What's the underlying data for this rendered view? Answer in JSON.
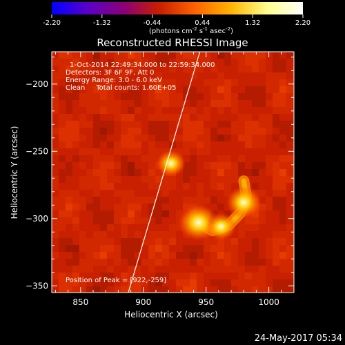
{
  "chart_data": {
    "type": "heatmap",
    "title": "Reconstructed RHESSI Image",
    "xlabel": "Heliocentric X (arcsec)",
    "ylabel": "Heliocentric Y (arcsec)",
    "x_range": [
      827,
      1020
    ],
    "y_range": [
      -355,
      -176
    ],
    "x_ticks": [
      850,
      900,
      950,
      1000
    ],
    "y_ticks": [
      -350,
      -300,
      -250,
      -200
    ],
    "colorbar": {
      "ticks": [
        "-2.20",
        "-1.32",
        "-0.44",
        "0.44",
        "1.32",
        "2.20"
      ],
      "range": [
        -2.2,
        2.2
      ],
      "unit_label": "(photons cm",
      "unit_sup1": "-2",
      "unit_mid": " s",
      "unit_sup2": "-1",
      "unit_tail": " asec",
      "unit_sup3": "-2",
      "unit_close": ")",
      "colors": [
        "#0000ff",
        "#5a00c8",
        "#8a0078",
        "#c81e00",
        "#ff6400",
        "#ffb400",
        "#ffff8c",
        "#ffffff"
      ]
    },
    "annotations": [
      "1-Oct-2014 22:49:34.000 to 22:59:34.000",
      "Detectors: 3F 6F 9F, Att 0",
      "Energy Range: 3.0 - 6.0 keV",
      "Clean     Total counts: 1.60E+05"
    ],
    "peak_label": "Position of Peak = [922,-259]",
    "peak": {
      "x": 922,
      "y": -259
    },
    "sources": [
      {
        "x": 922,
        "y": -259,
        "intensity": 2.2,
        "width": 7
      },
      {
        "x": 944,
        "y": -303,
        "intensity": 1.3,
        "width": 12
      },
      {
        "x": 980,
        "y": -288,
        "intensity": 1.1,
        "width": 11
      },
      {
        "x": 962,
        "y": -306,
        "intensity": 0.9,
        "width": 10
      }
    ],
    "limb_line": [
      [
        888,
        -355
      ],
      [
        945,
        -176
      ]
    ],
    "grid": false,
    "footer_date": "24-May-2017 05:34"
  }
}
